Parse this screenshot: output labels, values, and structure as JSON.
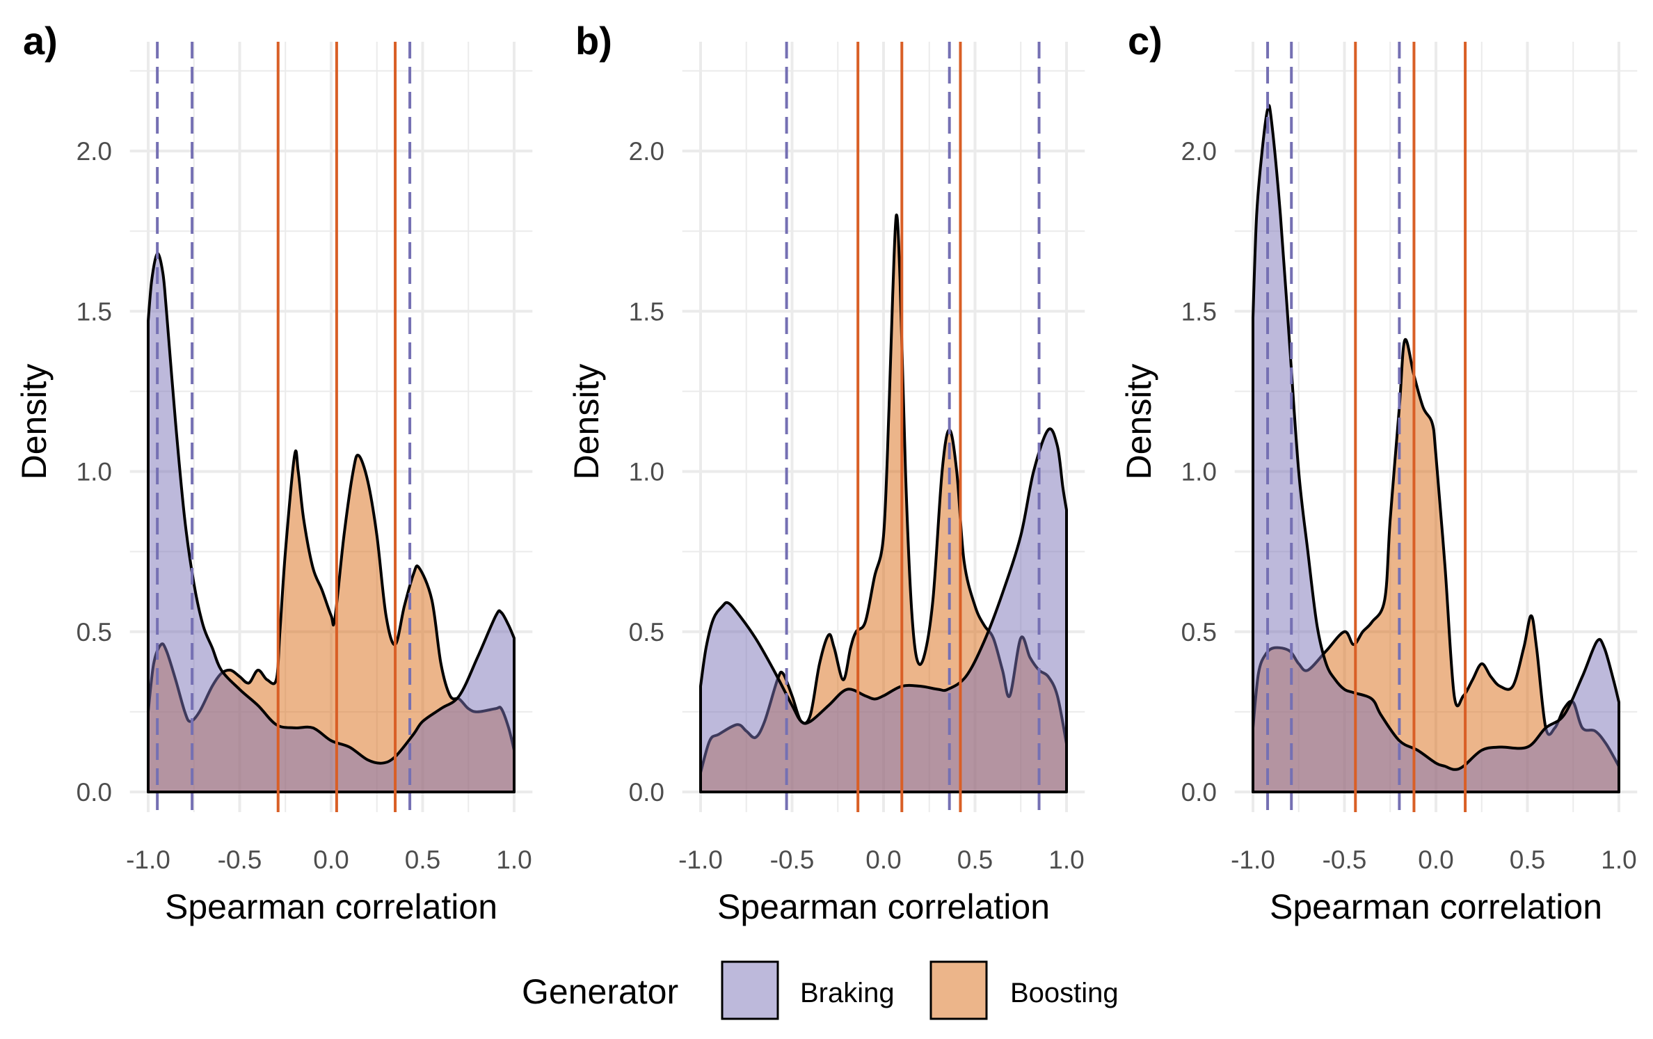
{
  "chart_data": [
    {
      "type": "area",
      "panel_label": "a)",
      "xlabel": "Spearman correlation",
      "ylabel": "Density",
      "xlim": [
        -1.0,
        1.0
      ],
      "ylim": [
        0.0,
        2.25
      ],
      "xticks": [
        "-1.0",
        "-0.5",
        "0.0",
        "0.5",
        "1.0"
      ],
      "yticks": [
        "0.0",
        "0.5",
        "1.0",
        "1.5",
        "2.0"
      ],
      "grid": true,
      "series": [
        {
          "name": "Braking",
          "x": [
            -1.0,
            -0.98,
            -0.95,
            -0.92,
            -0.9,
            -0.85,
            -0.8,
            -0.75,
            -0.7,
            -0.65,
            -0.6,
            -0.5,
            -0.4,
            -0.3,
            -0.2,
            -0.1,
            0.0,
            0.1,
            0.2,
            0.28,
            0.35,
            0.45,
            0.5,
            0.6,
            0.7,
            0.8,
            0.9,
            0.93,
            0.97,
            1.0
          ],
          "y": [
            1.47,
            1.6,
            1.68,
            1.62,
            1.5,
            1.15,
            0.85,
            0.65,
            0.52,
            0.45,
            0.38,
            0.32,
            0.27,
            0.21,
            0.2,
            0.2,
            0.16,
            0.14,
            0.1,
            0.09,
            0.11,
            0.18,
            0.22,
            0.26,
            0.3,
            0.42,
            0.55,
            0.56,
            0.52,
            0.48
          ]
        },
        {
          "name": "Boosting",
          "x": [
            -1.0,
            -0.97,
            -0.93,
            -0.9,
            -0.85,
            -0.8,
            -0.77,
            -0.72,
            -0.65,
            -0.6,
            -0.55,
            -0.5,
            -0.45,
            -0.4,
            -0.35,
            -0.3,
            -0.28,
            -0.25,
            -0.2,
            -0.18,
            -0.15,
            -0.1,
            -0.05,
            0.0,
            0.02,
            0.07,
            0.12,
            0.15,
            0.2,
            0.25,
            0.3,
            0.35,
            0.4,
            0.45,
            0.48,
            0.55,
            0.6,
            0.65,
            0.7,
            0.75,
            0.8,
            0.9,
            0.93,
            0.97,
            1.0
          ],
          "y": [
            0.25,
            0.4,
            0.46,
            0.44,
            0.35,
            0.25,
            0.22,
            0.25,
            0.33,
            0.37,
            0.38,
            0.36,
            0.34,
            0.38,
            0.35,
            0.35,
            0.5,
            0.75,
            1.05,
            1.0,
            0.85,
            0.7,
            0.63,
            0.55,
            0.54,
            0.8,
            1.0,
            1.05,
            0.97,
            0.8,
            0.55,
            0.46,
            0.58,
            0.68,
            0.7,
            0.6,
            0.4,
            0.3,
            0.29,
            0.26,
            0.25,
            0.26,
            0.26,
            0.2,
            0.13
          ]
        }
      ],
      "vlines": [
        {
          "series": "Braking",
          "style": "dashed",
          "x": [
            -0.95,
            -0.76,
            0.43
          ]
        },
        {
          "series": "Boosting",
          "style": "solid",
          "x": [
            -0.29,
            0.03,
            0.35
          ]
        }
      ]
    },
    {
      "type": "area",
      "panel_label": "b)",
      "xlabel": "Spearman correlation",
      "ylabel": "Density",
      "xlim": [
        -1.0,
        1.0
      ],
      "ylim": [
        0.0,
        2.25
      ],
      "xticks": [
        "-1.0",
        "-0.5",
        "0.0",
        "0.5",
        "1.0"
      ],
      "yticks": [
        "0.0",
        "0.5",
        "1.0",
        "1.5",
        "2.0"
      ],
      "grid": true,
      "series": [
        {
          "name": "Braking",
          "x": [
            -1.0,
            -0.97,
            -0.93,
            -0.88,
            -0.85,
            -0.8,
            -0.7,
            -0.6,
            -0.5,
            -0.45,
            -0.4,
            -0.3,
            -0.2,
            -0.1,
            -0.05,
            0.0,
            0.1,
            0.2,
            0.3,
            0.35,
            0.45,
            0.55,
            0.65,
            0.75,
            0.82,
            0.9,
            0.95,
            0.98,
            1.0
          ],
          "y": [
            0.33,
            0.45,
            0.54,
            0.58,
            0.59,
            0.56,
            0.48,
            0.38,
            0.27,
            0.22,
            0.22,
            0.27,
            0.32,
            0.3,
            0.29,
            0.3,
            0.33,
            0.33,
            0.32,
            0.32,
            0.36,
            0.47,
            0.62,
            0.8,
            1.0,
            1.13,
            1.08,
            0.95,
            0.88
          ]
        },
        {
          "name": "Boosting",
          "x": [
            -1.0,
            -0.95,
            -0.9,
            -0.8,
            -0.75,
            -0.7,
            -0.65,
            -0.58,
            -0.55,
            -0.5,
            -0.45,
            -0.4,
            -0.35,
            -0.3,
            -0.27,
            -0.22,
            -0.18,
            -0.15,
            -0.1,
            -0.05,
            0.0,
            0.03,
            0.05,
            0.07,
            0.09,
            0.12,
            0.15,
            0.18,
            0.22,
            0.27,
            0.32,
            0.36,
            0.4,
            0.44,
            0.5,
            0.55,
            0.6,
            0.65,
            0.69,
            0.75,
            0.8,
            0.85,
            0.9,
            0.95,
            1.0
          ],
          "y": [
            0.06,
            0.16,
            0.18,
            0.21,
            0.19,
            0.17,
            0.22,
            0.35,
            0.37,
            0.3,
            0.22,
            0.24,
            0.4,
            0.49,
            0.45,
            0.35,
            0.45,
            0.5,
            0.53,
            0.67,
            0.8,
            1.2,
            1.55,
            1.8,
            1.6,
            1.0,
            0.6,
            0.42,
            0.42,
            0.6,
            1.0,
            1.13,
            1.0,
            0.72,
            0.58,
            0.52,
            0.48,
            0.38,
            0.3,
            0.48,
            0.42,
            0.38,
            0.36,
            0.3,
            0.15
          ]
        }
      ],
      "vlines": [
        {
          "series": "Braking",
          "style": "dashed",
          "x": [
            -0.53,
            0.36,
            0.85
          ]
        },
        {
          "series": "Boosting",
          "style": "solid",
          "x": [
            -0.14,
            0.1,
            0.42
          ]
        }
      ]
    },
    {
      "type": "area",
      "panel_label": "c)",
      "xlabel": "Spearman correlation",
      "ylabel": "Density",
      "xlim": [
        -1.0,
        1.0
      ],
      "ylim": [
        0.0,
        2.25
      ],
      "xticks": [
        "-1.0",
        "-0.5",
        "0.0",
        "0.5",
        "1.0"
      ],
      "yticks": [
        "0.0",
        "0.5",
        "1.0",
        "1.5",
        "2.0"
      ],
      "grid": true,
      "series": [
        {
          "name": "Braking",
          "x": [
            -1.0,
            -0.98,
            -0.95,
            -0.92,
            -0.9,
            -0.85,
            -0.8,
            -0.75,
            -0.7,
            -0.65,
            -0.6,
            -0.55,
            -0.5,
            -0.45,
            -0.35,
            -0.3,
            -0.2,
            -0.1,
            0.0,
            0.05,
            0.1,
            0.15,
            0.25,
            0.35,
            0.5,
            0.6,
            0.7,
            0.8,
            0.88,
            0.92,
            0.97,
            1.0
          ],
          "y": [
            1.48,
            1.8,
            2.0,
            2.13,
            2.1,
            1.8,
            1.4,
            1.0,
            0.75,
            0.52,
            0.4,
            0.35,
            0.32,
            0.31,
            0.29,
            0.24,
            0.16,
            0.13,
            0.09,
            0.08,
            0.07,
            0.08,
            0.13,
            0.14,
            0.14,
            0.2,
            0.24,
            0.36,
            0.47,
            0.45,
            0.35,
            0.28
          ]
        },
        {
          "name": "Boosting",
          "x": [
            -1.0,
            -0.97,
            -0.93,
            -0.88,
            -0.8,
            -0.75,
            -0.7,
            -0.6,
            -0.5,
            -0.45,
            -0.4,
            -0.35,
            -0.28,
            -0.25,
            -0.2,
            -0.17,
            -0.12,
            -0.07,
            -0.02,
            0.0,
            0.05,
            0.1,
            0.15,
            0.2,
            0.25,
            0.3,
            0.35,
            0.42,
            0.48,
            0.52,
            0.55,
            0.6,
            0.65,
            0.7,
            0.75,
            0.8,
            0.87,
            0.93,
            1.0
          ],
          "y": [
            0.2,
            0.37,
            0.43,
            0.45,
            0.44,
            0.4,
            0.38,
            0.44,
            0.5,
            0.46,
            0.5,
            0.53,
            0.6,
            0.85,
            1.2,
            1.41,
            1.3,
            1.2,
            1.15,
            1.05,
            0.7,
            0.3,
            0.3,
            0.35,
            0.4,
            0.36,
            0.33,
            0.33,
            0.45,
            0.55,
            0.45,
            0.2,
            0.2,
            0.26,
            0.28,
            0.2,
            0.19,
            0.15,
            0.08
          ]
        }
      ],
      "vlines": [
        {
          "series": "Braking",
          "style": "dashed",
          "x": [
            -0.92,
            -0.79,
            -0.2
          ]
        },
        {
          "series": "Boosting",
          "style": "solid",
          "x": [
            -0.44,
            -0.12,
            0.16
          ]
        }
      ]
    }
  ],
  "legend": {
    "title": "Generator",
    "placement": "bottom",
    "items": [
      {
        "label": "Braking",
        "color": "#7b73b7"
      },
      {
        "label": "Boosting",
        "color": "#d96b15"
      }
    ]
  },
  "colors": {
    "braking_fill": "#7b73b7",
    "boosting_fill": "#d96b15",
    "braking_line": "#7570b3",
    "boosting_line": "#d95f26",
    "grid": "#ebebeb"
  }
}
